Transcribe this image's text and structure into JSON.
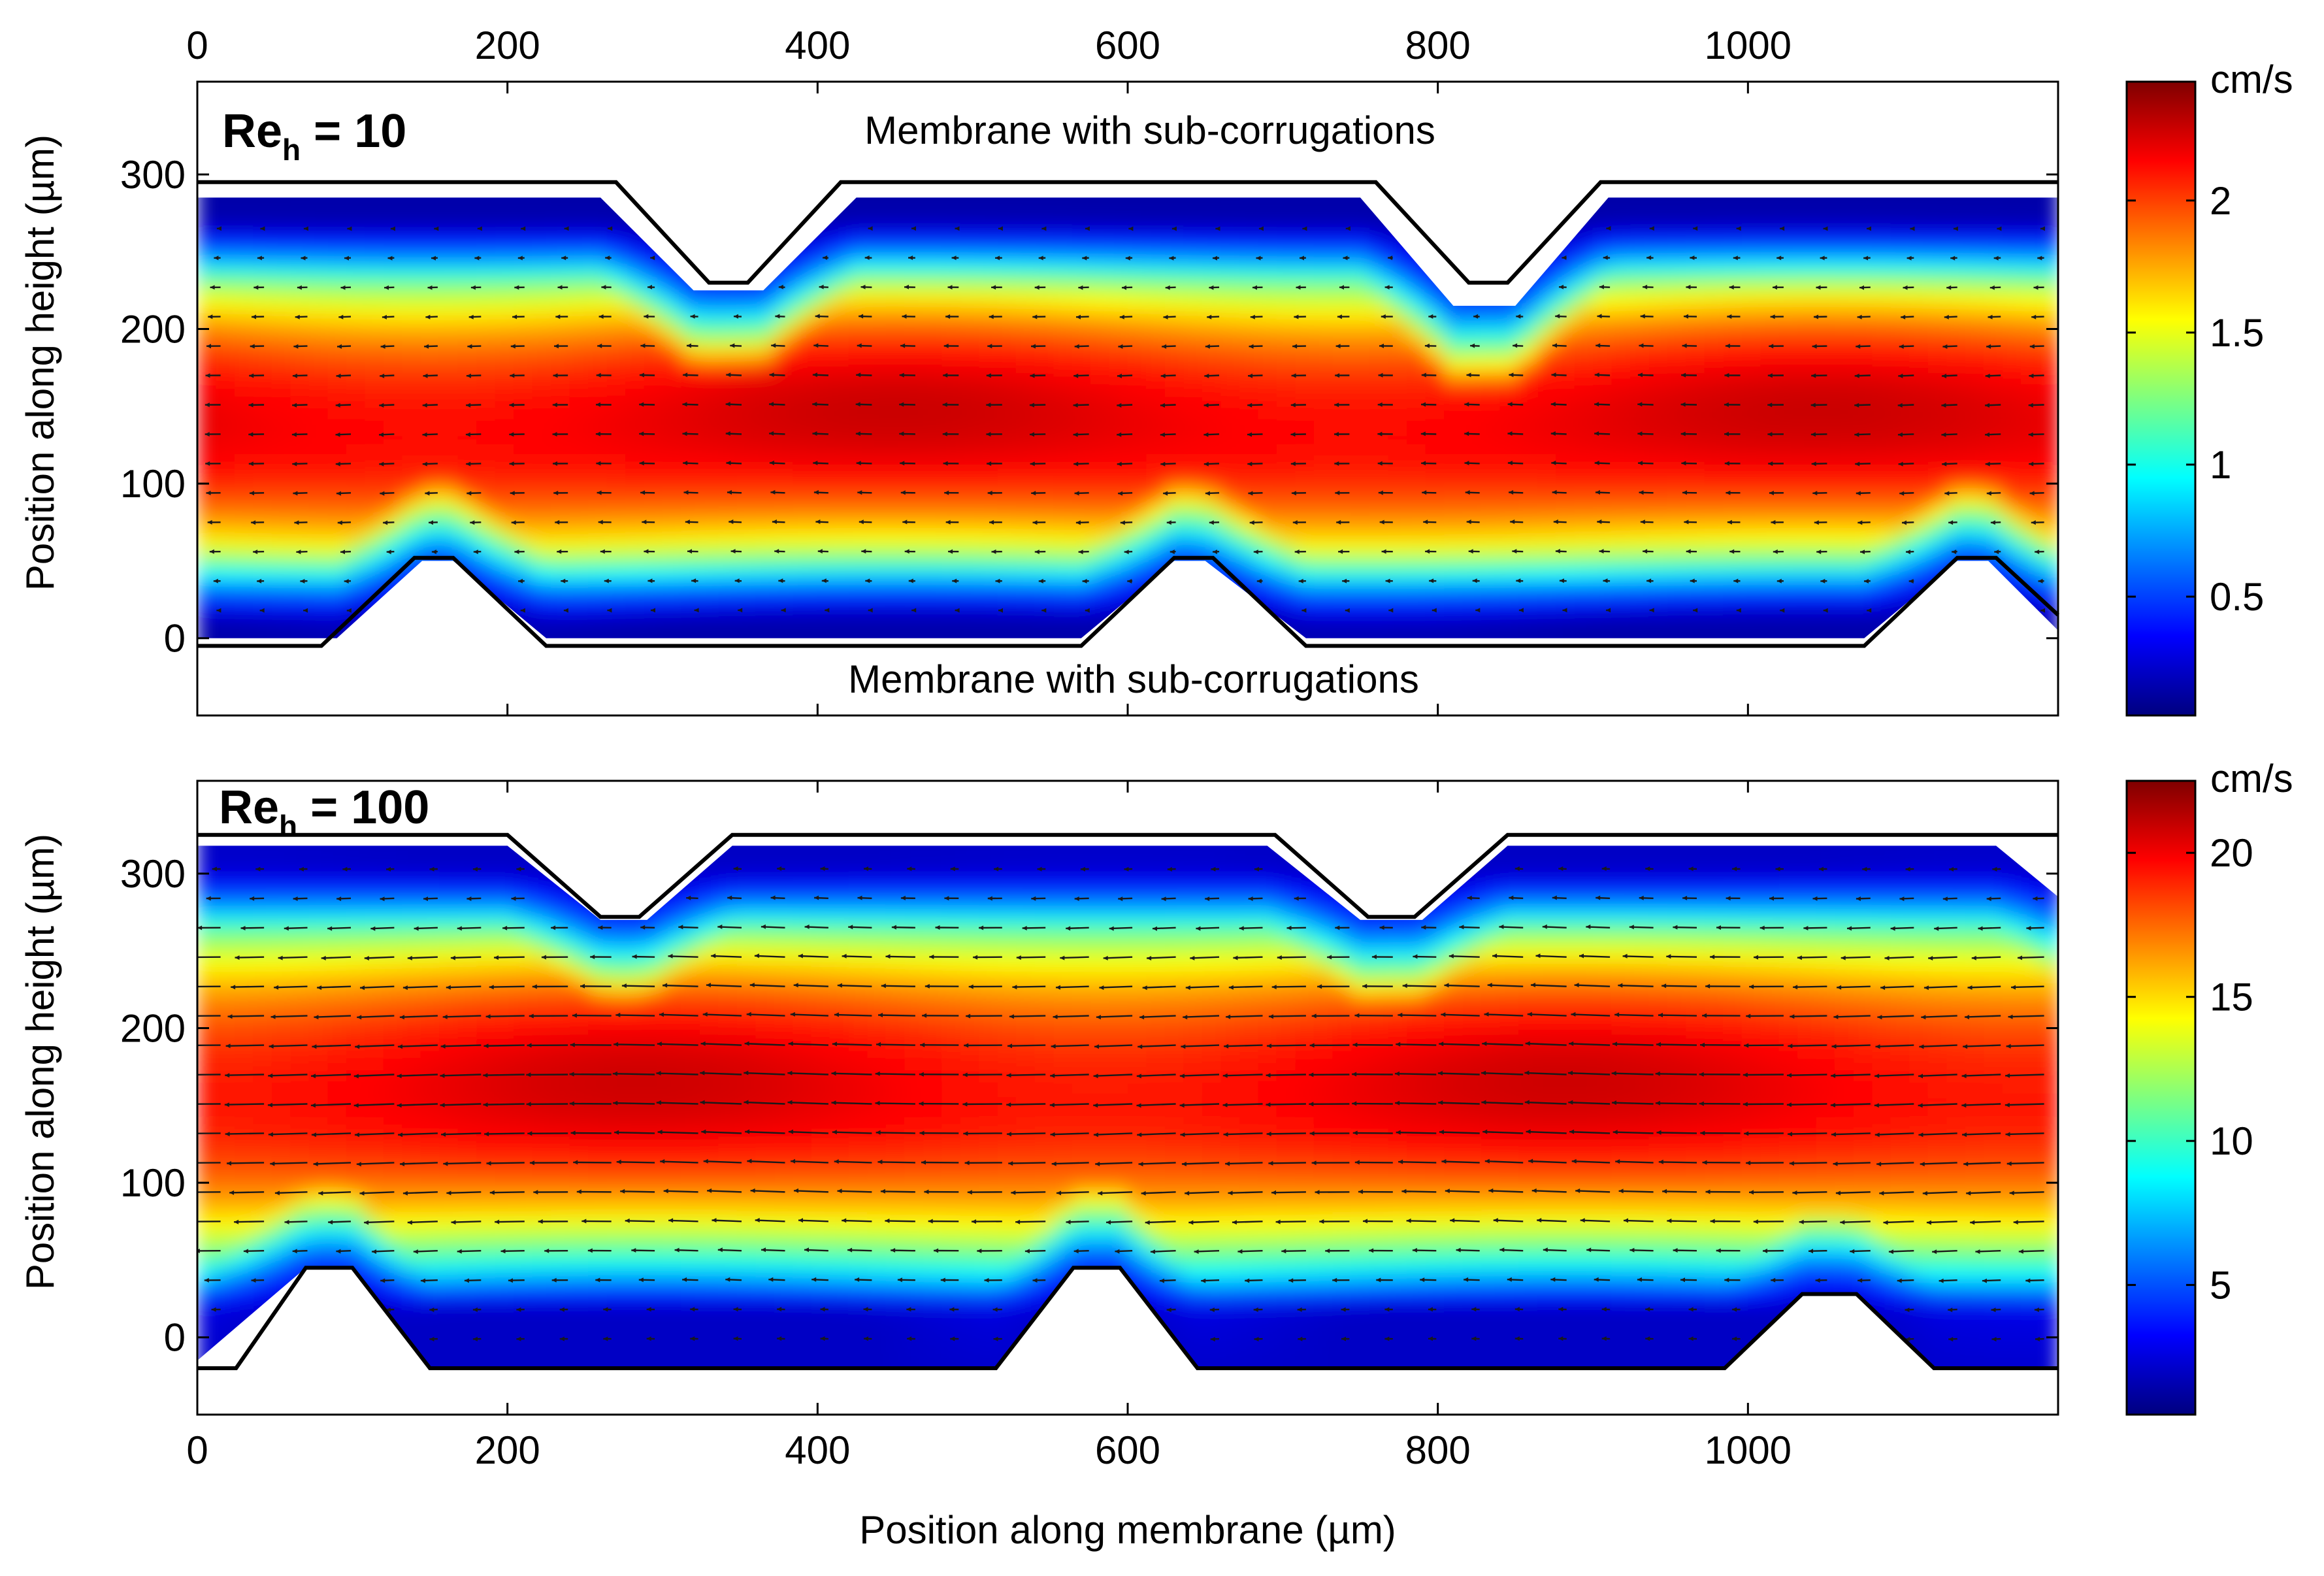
{
  "figure": {
    "xlabel": "Position along membrane (µm)",
    "ylabel": "Position along height (µm)",
    "colormap": [
      "#00007f",
      "#0000ff",
      "#007fff",
      "#00ffff",
      "#7fff7f",
      "#ffff00",
      "#ff7f00",
      "#ff0000",
      "#7f0000"
    ],
    "outline_color": "#000000",
    "arrow_color": "#1a1a1a"
  },
  "chart_data": [
    {
      "type": "heatmap",
      "title": "Re_h = 10",
      "title_main": "Re",
      "title_sub": "h",
      "title_value": " = 10",
      "xlabel": "",
      "ylabel": "Position along height (µm)",
      "x_ticks": [
        0,
        200,
        400,
        600,
        800,
        1000
      ],
      "x_tick_labels": [
        "0",
        "200",
        "400",
        "600",
        "800",
        "1000"
      ],
      "x_ticks_position": "top",
      "y_ticks": [
        0,
        100,
        200,
        300
      ],
      "y_tick_labels": [
        "0",
        "100",
        "200",
        "300"
      ],
      "xlim": [
        0,
        1200
      ],
      "ylim": [
        -50,
        360
      ],
      "annotations": {
        "top": "Membrane with sub-corrugations",
        "bottom": "Membrane with sub-corrugations"
      },
      "colorbar": {
        "unit": "cm/s",
        "range": [
          0.05,
          2.45
        ],
        "ticks": [
          0.5,
          1,
          1.5,
          2
        ],
        "tick_labels": [
          "0.5",
          "1",
          "1.5",
          "2"
        ]
      },
      "field": {
        "core_center_um": 140,
        "core_half_width_um": 105,
        "peak_velocity": 2.2,
        "wall_velocity": 0.15,
        "vector_spacing_x_um": 28,
        "vector_spacing_y_um": 19
      },
      "top_wall": [
        [
          0,
          295
        ],
        [
          270,
          295
        ],
        [
          330,
          230
        ],
        [
          355,
          230
        ],
        [
          415,
          295
        ],
        [
          760,
          295
        ],
        [
          820,
          230
        ],
        [
          845,
          230
        ],
        [
          905,
          295
        ],
        [
          1200,
          295
        ]
      ],
      "bottom_wall": [
        [
          0,
          -5
        ],
        [
          80,
          -5
        ],
        [
          140,
          52
        ],
        [
          165,
          52
        ],
        [
          225,
          -5
        ],
        [
          570,
          -5
        ],
        [
          630,
          52
        ],
        [
          655,
          52
        ],
        [
          715,
          -5
        ],
        [
          1075,
          -5
        ],
        [
          1135,
          52
        ],
        [
          1160,
          52
        ],
        [
          1200,
          15
        ]
      ],
      "fluid_top": [
        [
          0,
          285
        ],
        [
          260,
          285
        ],
        [
          320,
          225
        ],
        [
          365,
          225
        ],
        [
          425,
          285
        ],
        [
          750,
          285
        ],
        [
          810,
          215
        ],
        [
          850,
          215
        ],
        [
          910,
          285
        ],
        [
          1200,
          285
        ]
      ],
      "fluid_bottom": [
        [
          0,
          0
        ],
        [
          90,
          0
        ],
        [
          145,
          50
        ],
        [
          165,
          50
        ],
        [
          225,
          0
        ],
        [
          570,
          0
        ],
        [
          630,
          50
        ],
        [
          650,
          50
        ],
        [
          715,
          0
        ],
        [
          1075,
          0
        ],
        [
          1135,
          50
        ],
        [
          1155,
          50
        ],
        [
          1200,
          5
        ]
      ]
    },
    {
      "type": "heatmap",
      "title": "Re_h = 100",
      "title_main": "Re",
      "title_sub": "h",
      "title_value": " = 100",
      "xlabel": "Position along membrane (µm)",
      "ylabel": "Position along height (µm)",
      "x_ticks": [
        0,
        200,
        400,
        600,
        800,
        1000
      ],
      "x_tick_labels": [
        "0",
        "200",
        "400",
        "600",
        "800",
        "1000"
      ],
      "x_ticks_position": "bottom",
      "y_ticks": [
        0,
        100,
        200,
        300
      ],
      "y_tick_labels": [
        "0",
        "100",
        "200",
        "300"
      ],
      "xlim": [
        0,
        1200
      ],
      "ylim": [
        -50,
        360
      ],
      "colorbar": {
        "unit": "cm/s",
        "range": [
          0.5,
          22.5
        ],
        "ticks": [
          5,
          10,
          15,
          20
        ],
        "tick_labels": [
          "5",
          "10",
          "15",
          "20"
        ]
      },
      "field": {
        "core_center_um": 160,
        "core_half_width_um": 115,
        "peak_velocity": 20,
        "wall_velocity": 2,
        "vector_spacing_x_um": 28,
        "vector_spacing_y_um": 19
      },
      "top_wall": [
        [
          0,
          325
        ],
        [
          200,
          325
        ],
        [
          260,
          272
        ],
        [
          285,
          272
        ],
        [
          345,
          325
        ],
        [
          695,
          325
        ],
        [
          755,
          272
        ],
        [
          785,
          272
        ],
        [
          845,
          325
        ],
        [
          1200,
          325
        ]
      ],
      "bottom_wall": [
        [
          0,
          -20
        ],
        [
          25,
          -20
        ],
        [
          70,
          45
        ],
        [
          100,
          45
        ],
        [
          150,
          -20
        ],
        [
          515,
          -20
        ],
        [
          565,
          45
        ],
        [
          595,
          45
        ],
        [
          645,
          -20
        ],
        [
          985,
          -20
        ],
        [
          1035,
          28
        ],
        [
          1070,
          28
        ],
        [
          1120,
          -20
        ],
        [
          1200,
          -20
        ]
      ],
      "fluid_top": [
        [
          0,
          318
        ],
        [
          200,
          318
        ],
        [
          260,
          270
        ],
        [
          290,
          270
        ],
        [
          345,
          318
        ],
        [
          690,
          318
        ],
        [
          750,
          270
        ],
        [
          790,
          270
        ],
        [
          845,
          318
        ],
        [
          1160,
          318
        ],
        [
          1200,
          285
        ]
      ],
      "fluid_bottom": [
        [
          0,
          -15
        ],
        [
          70,
          45
        ],
        [
          100,
          45
        ],
        [
          150,
          -20
        ],
        [
          515,
          -20
        ],
        [
          565,
          45
        ],
        [
          595,
          45
        ],
        [
          645,
          -20
        ],
        [
          985,
          -20
        ],
        [
          1035,
          28
        ],
        [
          1070,
          28
        ],
        [
          1120,
          -20
        ],
        [
          1200,
          -20
        ]
      ]
    }
  ]
}
